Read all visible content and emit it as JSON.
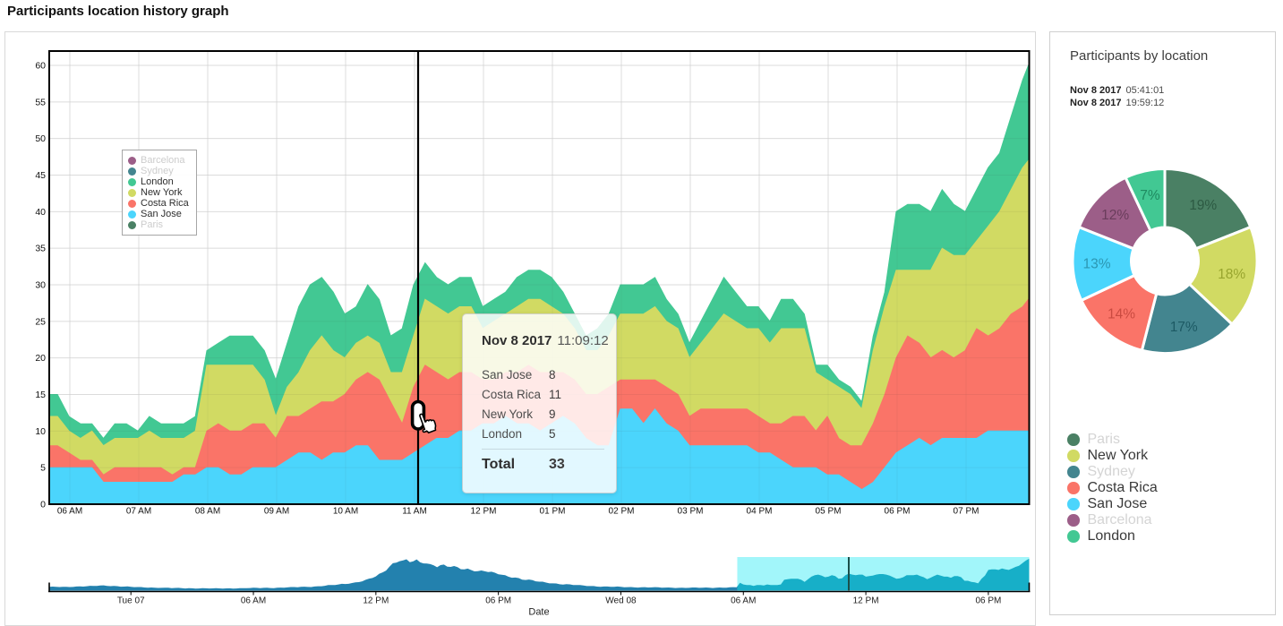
{
  "page": {
    "title": "Participants location history graph"
  },
  "colors": {
    "san_jose": "#4bd5fc",
    "costa_rica": "#fa7468",
    "new_york": "#d1da63",
    "london": "#42c893",
    "sydney": "#43858f",
    "barcelona": "#9c5e88",
    "paris": "#4a8064",
    "grid": "#e8e8e8",
    "plot_border": "#000000",
    "nav_area": "#2381ae",
    "nav_selection_bg": "#a2f6fa",
    "nav_selected_area": "#17afc8",
    "nav_cursor": "#1b4f4a",
    "legend_inactive_text": "#cccccc",
    "legend_active_text": "#2f2f2f"
  },
  "main_chart": {
    "legend": [
      {
        "label": "Barcelona",
        "color": "#9c5e88",
        "active": false
      },
      {
        "label": "Sydney",
        "color": "#43858f",
        "active": false
      },
      {
        "label": "London",
        "color": "#42c893",
        "active": true
      },
      {
        "label": "New York",
        "color": "#d1da63",
        "active": true
      },
      {
        "label": "Costa Rica",
        "color": "#fa7468",
        "active": true
      },
      {
        "label": "San Jose",
        "color": "#4bd5fc",
        "active": true
      },
      {
        "label": "Paris",
        "color": "#4a8064",
        "active": false
      }
    ],
    "y_ticks": [
      "0",
      "5",
      "10",
      "15",
      "20",
      "25",
      "30",
      "35",
      "40",
      "45",
      "50",
      "55",
      "60"
    ],
    "x_ticks": [
      "06 AM",
      "07 AM",
      "08 AM",
      "09 AM",
      "10 AM",
      "11 AM",
      "12 PM",
      "01 PM",
      "02 PM",
      "03 PM",
      "04 PM",
      "05 PM",
      "06 PM",
      "07 PM"
    ]
  },
  "tooltip": {
    "date": "Nov 8 2017",
    "time": "11:09:12",
    "rows": [
      {
        "label": "San Jose",
        "value": "8"
      },
      {
        "label": "Costa Rica",
        "value": "11"
      },
      {
        "label": "New York",
        "value": "9"
      },
      {
        "label": "London",
        "value": "5"
      }
    ],
    "total_label": "Total",
    "total_value": "33"
  },
  "side_panel": {
    "title": "Participants by location",
    "range": [
      {
        "date": "Nov 8 2017",
        "time": "05:41:01"
      },
      {
        "date": "Nov 8 2017",
        "time": "19:59:12"
      }
    ],
    "legend": [
      {
        "label": "Paris",
        "color": "#4a8064",
        "active": false
      },
      {
        "label": "New York",
        "color": "#d1da63",
        "active": true
      },
      {
        "label": "Sydney",
        "color": "#43858f",
        "active": false
      },
      {
        "label": "Costa Rica",
        "color": "#fa7468",
        "active": true
      },
      {
        "label": "San Jose",
        "color": "#4bd5fc",
        "active": true
      },
      {
        "label": "Barcelona",
        "color": "#9c5e88",
        "active": false
      },
      {
        "label": "London",
        "color": "#42c893",
        "active": true
      }
    ]
  },
  "navigator": {
    "x_ticks": [
      "Tue 07",
      "06 AM",
      "12 PM",
      "06 PM",
      "Wed 08",
      "06 AM",
      "12 PM",
      "06 PM"
    ],
    "axis_title": "Date",
    "selection_start": "05:41:01",
    "selection_end": "19:59:12"
  },
  "chart_data": [
    {
      "type": "area",
      "stacked": true,
      "title": "Participants location history graph",
      "xlabel": "Date",
      "ylabel": "",
      "ylim": [
        0,
        62
      ],
      "x_start_time": "05:49",
      "x_step_minutes": 10,
      "times": [
        "05:49",
        "05:59",
        "06:09",
        "06:19",
        "06:29",
        "06:39",
        "06:49",
        "06:59",
        "07:09",
        "07:19",
        "07:29",
        "07:39",
        "07:49",
        "07:59",
        "08:09",
        "08:19",
        "08:29",
        "08:39",
        "08:49",
        "08:59",
        "09:09",
        "09:19",
        "09:29",
        "09:39",
        "09:49",
        "09:59",
        "10:09",
        "10:19",
        "10:29",
        "10:39",
        "10:49",
        "10:59",
        "11:09",
        "11:19",
        "11:29",
        "11:39",
        "11:49",
        "11:59",
        "12:09",
        "12:19",
        "12:29",
        "12:39",
        "12:49",
        "12:59",
        "13:09",
        "13:19",
        "13:29",
        "13:39",
        "13:49",
        "13:59",
        "14:09",
        "14:19",
        "14:29",
        "14:39",
        "14:49",
        "14:59",
        "15:09",
        "15:19",
        "15:29",
        "15:39",
        "15:49",
        "15:59",
        "16:09",
        "16:19",
        "16:29",
        "16:39",
        "16:49",
        "16:59",
        "17:09",
        "17:19",
        "17:29",
        "17:39",
        "17:49",
        "17:59",
        "18:09",
        "18:19",
        "18:29",
        "18:39",
        "18:49",
        "18:59",
        "19:09",
        "19:19",
        "19:29",
        "19:39",
        "19:49",
        "19:59"
      ],
      "series": [
        {
          "name": "San Jose",
          "color": "#4bd5fc",
          "values": [
            5,
            5,
            5,
            5,
            3,
            3,
            3,
            3,
            3,
            3,
            3,
            4,
            4,
            5,
            5,
            4,
            4,
            5,
            5,
            5,
            6,
            7,
            7,
            6,
            7,
            7,
            8,
            8,
            6,
            6,
            6,
            7,
            8,
            9,
            9,
            10,
            10,
            11,
            11,
            12,
            11,
            11,
            10,
            11,
            12,
            11,
            9,
            8,
            8,
            13,
            13,
            11,
            13,
            11,
            10,
            8,
            8,
            8,
            8,
            8,
            8,
            7,
            7,
            6,
            5,
            5,
            5,
            4,
            4,
            3,
            2,
            3,
            5,
            7,
            8,
            9,
            8,
            9,
            9,
            9,
            9,
            10,
            10,
            10,
            10,
            10
          ]
        },
        {
          "name": "Costa Rica",
          "color": "#fa7468",
          "values": [
            3,
            2,
            1,
            1,
            1,
            2,
            2,
            2,
            2,
            2,
            1,
            1,
            1,
            5,
            6,
            6,
            6,
            6,
            6,
            4,
            6,
            5,
            6,
            8,
            7,
            8,
            9,
            10,
            11,
            8,
            5,
            9,
            11,
            9,
            8,
            8,
            8,
            6,
            6,
            6,
            7,
            8,
            8,
            7,
            6,
            6,
            6,
            7,
            8,
            4,
            4,
            6,
            4,
            5,
            5,
            4,
            5,
            5,
            5,
            5,
            5,
            5,
            4,
            5,
            7,
            7,
            5,
            8,
            5,
            5,
            6,
            8,
            10,
            13,
            15,
            13,
            12,
            12,
            11,
            12,
            15,
            13,
            14,
            16,
            17,
            19
          ]
        },
        {
          "name": "New York",
          "color": "#d1da63",
          "values": [
            4,
            3,
            3,
            4,
            4,
            4,
            4,
            4,
            5,
            4,
            5,
            4,
            5,
            9,
            8,
            9,
            9,
            8,
            6,
            3,
            4,
            6,
            8,
            9,
            7,
            5,
            5,
            5,
            5,
            4,
            7,
            7,
            9,
            9,
            9,
            9,
            9,
            7,
            8,
            8,
            9,
            9,
            10,
            9,
            8,
            7,
            6,
            6,
            7,
            9,
            9,
            9,
            10,
            9,
            9,
            8,
            9,
            11,
            13,
            12,
            11,
            12,
            11,
            13,
            12,
            12,
            8,
            5,
            7,
            7,
            5,
            10,
            12,
            12,
            9,
            10,
            12,
            14,
            14,
            13,
            12,
            15,
            16,
            17,
            19,
            19
          ]
        },
        {
          "name": "London",
          "color": "#42c893",
          "values": [
            3,
            2,
            2,
            1,
            1,
            2,
            2,
            1,
            2,
            2,
            2,
            2,
            2,
            2,
            3,
            4,
            4,
            4,
            4,
            5,
            6,
            9,
            9,
            8,
            8,
            6,
            5,
            7,
            6,
            5,
            6,
            7,
            5,
            4,
            4,
            4,
            4,
            3,
            3,
            3,
            4,
            4,
            4,
            4,
            3,
            2,
            2,
            3,
            3,
            4,
            4,
            4,
            4,
            3,
            2,
            2,
            3,
            4,
            5,
            4,
            3,
            3,
            3,
            4,
            4,
            2,
            1,
            2,
            1,
            1,
            1,
            2,
            2,
            8,
            9,
            9,
            8,
            8,
            7,
            6,
            7,
            8,
            8,
            10,
            12,
            14
          ]
        }
      ],
      "hidden_series": [
        "Barcelona",
        "Sydney",
        "Paris"
      ],
      "cursor": {
        "time": "11:09:12",
        "total": 33
      }
    },
    {
      "type": "pie",
      "donut": true,
      "title": "Participants by location",
      "slices": [
        {
          "label": "Paris",
          "pct": 19,
          "color": "#4a8064",
          "label_color": "#2d5a43"
        },
        {
          "label": "New York",
          "pct": 18,
          "color": "#d1da63",
          "label_color": "#98a52e"
        },
        {
          "label": "Sydney",
          "pct": 17,
          "color": "#43858f",
          "label_color": "#1d5a64"
        },
        {
          "label": "Costa Rica",
          "pct": 14,
          "color": "#fa7468",
          "label_color": "#ca4b41"
        },
        {
          "label": "San Jose",
          "pct": 13,
          "color": "#4bd5fc",
          "label_color": "#2b96b2"
        },
        {
          "label": "Barcelona",
          "pct": 12,
          "color": "#9c5e88",
          "label_color": "#6a3d5c"
        },
        {
          "label": "London",
          "pct": 7,
          "color": "#42c893",
          "label_color": "#1f8a60"
        }
      ]
    },
    {
      "type": "area",
      "name": "navigator",
      "x_span_hours": 48,
      "x_start": "Mon Nov 6 20:00",
      "x_step_minutes": 10,
      "values": [
        7.3,
        7.8,
        7.3,
        7.0,
        7.5,
        7.5,
        6.9,
        7.1,
        8.0,
        8.1,
        7.8,
        8.5,
        9.3,
        9.2,
        9.1,
        10.0,
        10.2,
        9.0,
        8.6,
        9.1,
        8.7,
        7.7,
        7.8,
        8.1,
        7.3,
        6.7,
        7.0,
        6.9,
        6.0,
        5.6,
        6.0,
        5.8,
        5.2,
        5.3,
        5.8,
        5.5,
        4.9,
        5.2,
        5.3,
        4.7,
        4.2,
        4.6,
        4.5,
        4.0,
        4.1,
        4.6,
        4.5,
        4.1,
        4.4,
        4.8,
        4.4,
        4.0,
        4.4,
        4.5,
        4.0,
        4.1,
        4.8,
        4.9,
        4.6,
        5.1,
        5.6,
        5.3,
        4.9,
        5.3,
        5.5,
        5.0,
        4.9,
        5.7,
        5.9,
        5.7,
        6.2,
        7.0,
        6.9,
        6.6,
        7.2,
        7.6,
        7.1,
        7.0,
        7.9,
        8.5,
        8.5,
        9.3,
        10.7,
        11.0,
        10.9,
        12.0,
        13.1,
        12.8,
        13.1,
        14.8,
        16.0,
        16.4,
        18.0,
        20.9,
        23.2,
        24.4,
        27.6,
        32.7,
        35.3,
        38.9,
        46.3,
        53.1,
        54.3,
        57.0,
        58.5,
        60.6,
        55.0,
        56.8,
        60.5,
        54.8,
        52.7,
        52.4,
        51.3,
        49.1,
        45.3,
        49.4,
        50.5,
        46.4,
        45.9,
        47.7,
        45.5,
        41.5,
        41.3,
        42.7,
        39.9,
        37.2,
        37.8,
        39.0,
        37.4,
        36.0,
        36.5,
        34.7,
        31.6,
        30.7,
        29.8,
        26.9,
        25.0,
        25.3,
        24.2,
        21.4,
        20.7,
        21.5,
        20.5,
        18.1,
        17.3,
        17.3,
        15.6,
        14.0,
        14.1,
        13.8,
        12.3,
        11.8,
        12.5,
        12.1,
        10.9,
        10.7,
        10.8,
        9.9,
        8.8,
        8.8,
        8.8,
        7.8,
        7.3,
        8.0,
        8.0,
        7.4,
        7.4,
        7.9,
        7.4,
        6.6,
        6.8,
        7.0,
        6.3,
        5.9,
        6.5,
        6.7,
        6.1,
        6.2,
        6.8,
        6.5,
        5.8,
        5.9,
        6.1,
        5.5,
        5.0,
        5.4,
        5.6,
        5.2,
        5.3,
        6.0,
        6.0,
        5.4,
        5.6,
        6.0,
        5.6,
        5.1,
        5.6,
        6.0,
        5.6,
        5.7,
        6.6,
        6.8,
        6.4,
        15,
        12,
        11,
        11,
        9,
        11,
        11,
        10,
        12,
        11,
        11,
        11,
        12,
        21,
        22,
        23,
        23,
        23,
        21,
        17,
        22,
        27,
        30,
        31,
        29,
        26,
        27,
        30,
        28,
        23,
        24,
        30,
        33,
        31,
        30,
        31,
        31,
        27,
        28,
        29,
        31,
        32,
        32,
        31,
        29,
        26,
        23,
        24,
        26,
        30,
        30,
        30,
        31,
        28,
        26,
        22,
        25,
        28,
        31,
        29,
        27,
        27,
        25,
        28,
        28,
        26,
        19,
        19,
        17,
        16,
        14,
        23,
        29,
        40,
        41,
        41,
        40,
        43,
        41,
        40,
        43,
        46,
        48,
        53,
        58,
        62
      ],
      "selection": {
        "start_index": 203,
        "end_index": 288
      }
    }
  ]
}
